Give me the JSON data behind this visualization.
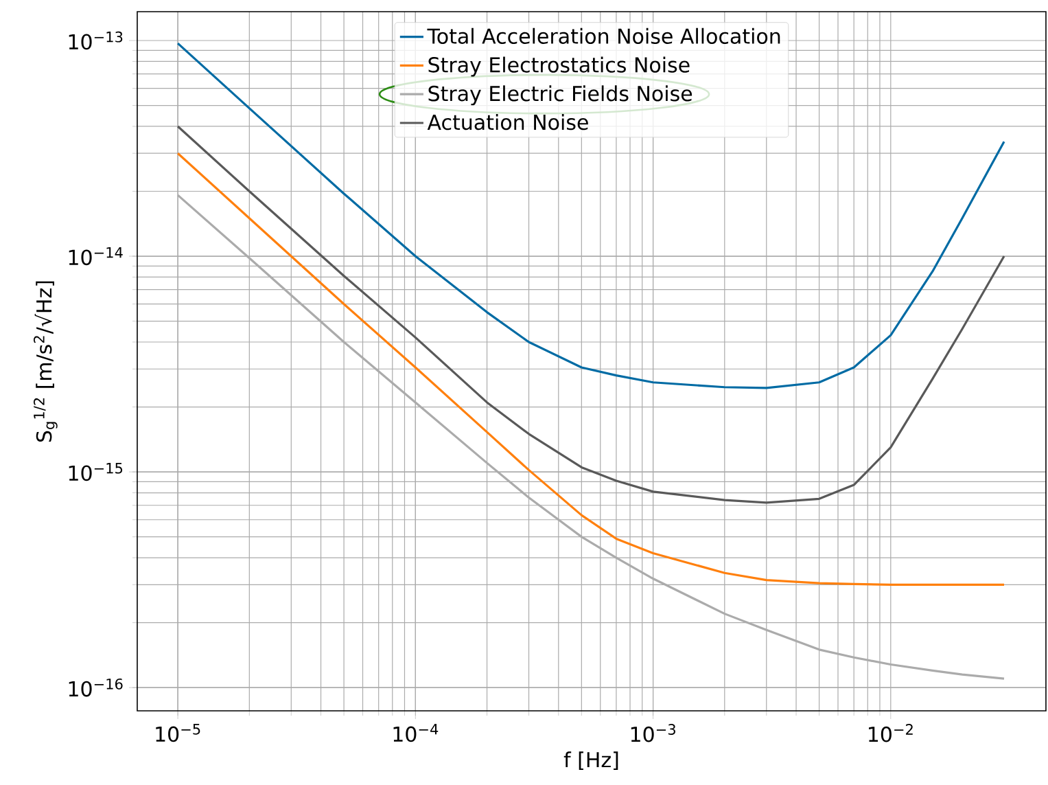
{
  "chart_data": {
    "type": "line",
    "xlabel": "f [Hz]",
    "ylabel": "S$_{g}$$^{1/2}$ [m/s$^{2}$/√Hz]",
    "log": "xy",
    "grid": true,
    "legend": "top",
    "xlim": [
      6.75e-06,
      0.045
    ],
    "ylim": [
      7.8e-17,
      1.36e-13
    ],
    "xticks": [
      {
        "value": 1e-05,
        "label": "10$^{−5}$"
      },
      {
        "value": 0.0001,
        "label": "10$^{−4}$"
      },
      {
        "value": 0.001,
        "label": "10$^{−3}$"
      },
      {
        "value": 0.01,
        "label": "10$^{−2}$"
      }
    ],
    "yticks": [
      {
        "value": 1e-16,
        "label": "10$^{−16}$"
      },
      {
        "value": 1e-15,
        "label": "10$^{−15}$"
      },
      {
        "value": 1e-14,
        "label": "10$^{−14}$"
      },
      {
        "value": 1e-13,
        "label": "10$^{−13}$"
      }
    ],
    "x": [
      1e-05,
      2e-05,
      5e-05,
      0.0001,
      0.0002,
      0.0003,
      0.0005,
      0.0007,
      0.001,
      0.002,
      0.003,
      0.005,
      0.007,
      0.01,
      0.015,
      0.02,
      0.03
    ],
    "series": [
      {
        "name": "Total Acceleration Noise Allocation",
        "color": "#006ba4",
        "values": [
          9.7e-14,
          4.85e-14,
          1.95e-14,
          1e-14,
          5.5e-15,
          4e-15,
          3.05e-15,
          2.8e-15,
          2.6e-15,
          2.47e-15,
          2.45e-15,
          2.6e-15,
          3.05e-15,
          4.3e-15,
          8.5e-15,
          1.5e-14,
          3.4e-14
        ]
      },
      {
        "name": "Stray Electrostatics Noise",
        "color": "#ff800e",
        "values": [
          3e-14,
          1.5e-14,
          6e-15,
          3.05e-15,
          1.53e-15,
          1.02e-15,
          6.3e-16,
          4.9e-16,
          4.2e-16,
          3.4e-16,
          3.15e-16,
          3.05e-16,
          3.02e-16,
          3e-16,
          3e-16,
          3e-16,
          3e-16
        ]
      },
      {
        "name": "Stray Electric Fields Noise",
        "color": "#ababab",
        "values": [
          1.92e-14,
          9.8e-15,
          4e-15,
          2.1e-15,
          1.1e-15,
          7.6e-16,
          5e-16,
          4e-16,
          3.2e-16,
          2.2e-16,
          1.85e-16,
          1.5e-16,
          1.38e-16,
          1.28e-16,
          1.2e-16,
          1.15e-16,
          1.1e-16
        ]
      },
      {
        "name": "Actuation Noise",
        "color": "#595959",
        "values": [
          4e-14,
          2e-14,
          8.1e-15,
          4.2e-15,
          2.1e-15,
          1.5e-15,
          1.05e-15,
          9.1e-16,
          8.1e-16,
          7.4e-16,
          7.2e-16,
          7.5e-16,
          8.7e-16,
          1.3e-15,
          2.7e-15,
          4.6e-15,
          1e-14
        ]
      }
    ]
  }
}
